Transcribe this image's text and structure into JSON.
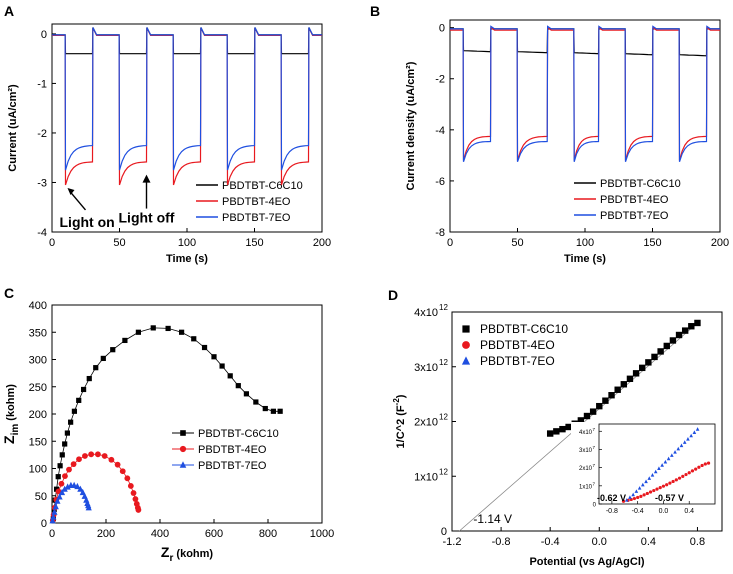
{
  "chart_data": [
    {
      "panel": "A",
      "type": "line",
      "xlabel": "Time (s)",
      "ylabel": "Current (uA/cm²)",
      "xlim": [
        0,
        200
      ],
      "ylim": [
        -4,
        0.2
      ],
      "xticks": [
        0,
        50,
        100,
        150,
        200
      ],
      "yticks": [
        0,
        -1,
        -2,
        -3,
        -4
      ],
      "legend_position": "lower-right",
      "on_off_periods_s": [
        [
          10,
          30
        ],
        [
          50,
          70
        ],
        [
          90,
          110
        ],
        [
          130,
          150
        ],
        [
          170,
          190
        ]
      ],
      "series": [
        {
          "name": "PBDTBT-C6C10",
          "color": "#000000",
          "dark": -0.02,
          "light_peak": -0.4,
          "light_steady": -0.4
        },
        {
          "name": "PBDTBT-4EO",
          "color": "#e8191f",
          "dark": -0.03,
          "light_peak": -3.05,
          "light_steady": -2.58
        },
        {
          "name": "PBDTBT-7EO",
          "color": "#1f4fe0",
          "dark": -0.02,
          "light_peak": -2.75,
          "light_steady": -2.25
        }
      ],
      "annotations": [
        {
          "text": "Light on",
          "x": 10,
          "y": -3.05
        },
        {
          "text": "Light off",
          "x": 70,
          "y": -2.8
        }
      ]
    },
    {
      "panel": "B",
      "type": "line",
      "xlabel": "Time (s)",
      "ylabel": "Current density (uA/cm²)",
      "xlim": [
        0,
        200
      ],
      "ylim": [
        -8,
        0.3
      ],
      "xticks": [
        0,
        50,
        100,
        150,
        200
      ],
      "yticks": [
        0,
        -2,
        -4,
        -6,
        -8
      ],
      "legend_position": "lower-right",
      "on_off_periods_s": [
        [
          10,
          30
        ],
        [
          50,
          72
        ],
        [
          92,
          110
        ],
        [
          130,
          150
        ],
        [
          170,
          190
        ]
      ],
      "series": [
        {
          "name": "PBDTBT-C6C10",
          "color": "#000000",
          "dark": -0.05,
          "light_start": -0.9,
          "light_end": -1.1
        },
        {
          "name": "PBDTBT-4EO",
          "color": "#e8191f",
          "dark": -0.1,
          "light_peak": -5.2,
          "light_steady": -4.25
        },
        {
          "name": "PBDTBT-7EO",
          "color": "#1f4fe0",
          "dark": -0.05,
          "light_peak": -5.25,
          "light_steady": -4.45
        }
      ]
    },
    {
      "panel": "C",
      "type": "scatter",
      "xlabel_main": "Z",
      "xlabel_sub": "r",
      "xlabel_unit": " (kohm)",
      "ylabel_main": "Z",
      "ylabel_sub": "im",
      "ylabel_unit": " (kohm)",
      "xlim": [
        0,
        1000
      ],
      "ylim": [
        0,
        400
      ],
      "xticks": [
        0,
        200,
        400,
        600,
        800,
        1000
      ],
      "yticks": [
        0,
        50,
        100,
        150,
        200,
        250,
        300,
        350,
        400
      ],
      "legend_position": "center-right",
      "series": [
        {
          "name": "PBDTBT-C6C10",
          "color": "#000000",
          "marker": "square",
          "x": [
            5,
            8,
            12,
            17,
            23,
            30,
            38,
            47,
            57,
            69,
            83,
            99,
            117,
            138,
            162,
            190,
            225,
            270,
            320,
            375,
            430,
            480,
            525,
            565,
            600,
            630,
            660,
            690,
            720,
            755,
            790,
            820,
            845
          ],
          "y": [
            8,
            25,
            42,
            62,
            85,
            105,
            125,
            145,
            165,
            185,
            205,
            225,
            245,
            265,
            285,
            302,
            318,
            335,
            350,
            358,
            357,
            350,
            338,
            322,
            305,
            288,
            270,
            252,
            237,
            222,
            210,
            205,
            205
          ]
        },
        {
          "name": "PBDTBT-4EO",
          "color": "#e8191f",
          "marker": "circle",
          "x": [
            3,
            6,
            10,
            16,
            24,
            35,
            48,
            63,
            80,
            100,
            122,
            145,
            170,
            195,
            220,
            243,
            262,
            279,
            292,
            302,
            309,
            314,
            318,
            320
          ],
          "y": [
            5,
            15,
            28,
            43,
            58,
            72,
            86,
            98,
            108,
            117,
            123,
            126,
            126,
            123,
            116,
            107,
            95,
            82,
            68,
            55,
            44,
            35,
            28,
            24
          ]
        },
        {
          "name": "PBDTBT-7EO",
          "color": "#1f4fe0",
          "marker": "triangle",
          "x": [
            2,
            5,
            9,
            14,
            20,
            28,
            37,
            47,
            58,
            70,
            82,
            94,
            105,
            114,
            121,
            127,
            131,
            134,
            136
          ],
          "y": [
            4,
            11,
            20,
            30,
            40,
            48,
            56,
            62,
            66,
            69,
            69,
            67,
            62,
            56,
            49,
            42,
            36,
            32,
            28
          ]
        }
      ]
    },
    {
      "panel": "D",
      "type": "scatter",
      "xlabel": "Potential (vs Ag/AgCl)",
      "ylabel_main": "1/C^2 (F",
      "ylabel_sup": "-2",
      "ylabel_end": ")",
      "xlim": [
        -1.2,
        1.0
      ],
      "ylim": [
        0,
        4
      ],
      "xticks": [
        -1.2,
        -0.8,
        -0.4,
        0.0,
        0.4,
        0.8
      ],
      "xtick_labels": [
        "-1.2",
        "-0.8",
        "-0.4",
        "0.0",
        "0.4",
        "0.8"
      ],
      "yticks": [
        0,
        1,
        2,
        3,
        4
      ],
      "ytick_labels": [
        "0",
        "1x10",
        "2x10",
        "3x10",
        "4x10"
      ],
      "ytick_exponent": "12",
      "y_units": "x10^12 F^-2",
      "legend_position": "top-left",
      "fit_line": {
        "x": [
          -1.14,
          0.8
        ],
        "y": [
          0,
          3.8
        ],
        "color": "#888888"
      },
      "intercept_label": "-1.14 V",
      "series": [
        {
          "name": "PBDTBT-C6C10",
          "color": "#000000",
          "marker": "square",
          "x": [
            -0.4,
            -0.35,
            -0.3,
            -0.25,
            -0.2,
            -0.15,
            -0.1,
            -0.05,
            0.0,
            0.05,
            0.1,
            0.15,
            0.2,
            0.25,
            0.3,
            0.35,
            0.4,
            0.45,
            0.5,
            0.55,
            0.6,
            0.65,
            0.7,
            0.75,
            0.8
          ],
          "y": [
            1.78,
            1.82,
            1.86,
            1.9,
            1.96,
            2.02,
            2.1,
            2.18,
            2.28,
            2.38,
            2.48,
            2.58,
            2.68,
            2.78,
            2.88,
            2.98,
            3.08,
            3.18,
            3.28,
            3.38,
            3.48,
            3.58,
            3.66,
            3.74,
            3.8
          ]
        }
      ],
      "legend_extra": [
        {
          "name": "PBDTBT-4EO",
          "color": "#e8191f",
          "marker": "circle"
        },
        {
          "name": "PBDTBT-7EO",
          "color": "#1f4fe0",
          "marker": "triangle"
        }
      ],
      "inset": {
        "xlim": [
          -1.0,
          0.8
        ],
        "ylim": [
          0,
          4.4
        ],
        "xticks": [
          -0.8,
          -0.4,
          0.0,
          0.4
        ],
        "xtick_labels": [
          "-0.8",
          "-0.4",
          "0.0",
          "0.4"
        ],
        "yticks": [
          0,
          1,
          2,
          3,
          4
        ],
        "ytick_labels": [
          "0",
          "1x10",
          "2x10",
          "3x10",
          "4x10"
        ],
        "ytick_exponent": "7",
        "y_units": "x10^7",
        "series": [
          {
            "name": "PBDTBT-4EO",
            "color": "#e8191f",
            "marker": "circle",
            "x": [
              -0.62,
              -0.55,
              -0.5,
              -0.45,
              -0.4,
              -0.35,
              -0.3,
              -0.25,
              -0.2,
              -0.15,
              -0.1,
              -0.05,
              0.0,
              0.05,
              0.1,
              0.15,
              0.2,
              0.25,
              0.3,
              0.35,
              0.4,
              0.45,
              0.5,
              0.55,
              0.6,
              0.65,
              0.7
            ],
            "y": [
              0.15,
              0.2,
              0.25,
              0.3,
              0.36,
              0.42,
              0.5,
              0.58,
              0.66,
              0.74,
              0.82,
              0.9,
              0.98,
              1.06,
              1.15,
              1.24,
              1.33,
              1.42,
              1.52,
              1.62,
              1.72,
              1.82,
              1.92,
              2.02,
              2.12,
              2.2,
              2.25
            ]
          },
          {
            "name": "PBDTBT-7EO",
            "color": "#1f4fe0",
            "marker": "triangle",
            "x": [
              -0.57,
              -0.52,
              -0.47,
              -0.42,
              -0.37,
              -0.32,
              -0.27,
              -0.22,
              -0.17,
              -0.12,
              -0.07,
              -0.02,
              0.03,
              0.08,
              0.13,
              0.18,
              0.23,
              0.28,
              0.33,
              0.38,
              0.43,
              0.48,
              0.53
            ],
            "y": [
              0.2,
              0.35,
              0.5,
              0.68,
              0.86,
              1.04,
              1.22,
              1.4,
              1.58,
              1.76,
              1.94,
              2.12,
              2.3,
              2.48,
              2.66,
              2.84,
              3.02,
              3.2,
              3.38,
              3.56,
              3.74,
              3.92,
              4.1
            ]
          }
        ],
        "labels": [
          {
            "text": "-0.62 V",
            "color": "#e8191f"
          },
          {
            "text": "-0.57 V",
            "color": "#1f4fe0"
          }
        ]
      }
    }
  ],
  "panel_labels": [
    "A",
    "B",
    "C",
    "D"
  ]
}
